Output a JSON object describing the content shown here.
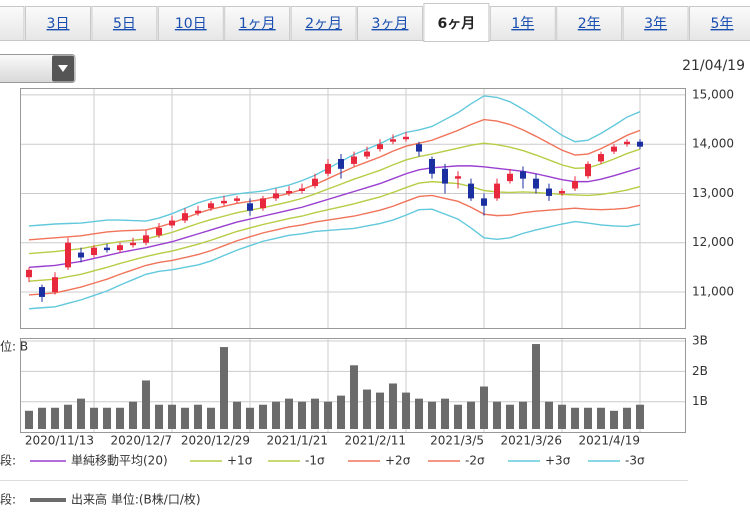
{
  "tabs": [
    "3日",
    "5日",
    "10日",
    "1ヶ月",
    "2ヶ月",
    "3ヶ月",
    "6ヶ月",
    "1年",
    "2年",
    "3年",
    "5年"
  ],
  "active_tab_index": 6,
  "date": "21/04/19",
  "chart_data": [
    {
      "type": "candlestick",
      "categories": [
        null,
        null,
        null,
        null,
        null,
        "2020/11/13",
        null,
        null,
        null,
        null,
        null,
        "2020/12/7",
        null,
        null,
        null,
        null,
        null,
        "2020/12/29",
        null,
        null,
        null,
        null,
        null,
        "2021/1/21",
        null,
        null,
        null,
        null,
        null,
        "2021/2/11",
        null,
        null,
        null,
        null,
        null,
        "2021/3/5",
        null,
        null,
        null,
        null,
        null,
        "2021/3/26",
        null,
        null,
        null,
        null,
        null,
        "2021/4/19"
      ],
      "open": [
        11300,
        11100,
        11000,
        11500,
        11800,
        11750,
        11900,
        11850,
        11950,
        12000,
        12150,
        12350,
        12450,
        12600,
        12700,
        12800,
        12850,
        12800,
        12700,
        12900,
        13000,
        13050,
        13150,
        13400,
        13700,
        13600,
        13750,
        13900,
        14050,
        14100,
        14000,
        13700,
        13500,
        13300,
        13200,
        12900,
        12900,
        13250,
        13450,
        13300,
        13100,
        13000,
        13100,
        13350,
        13650,
        13850,
        14000,
        14050
      ],
      "high": [
        11500,
        11150,
        11400,
        12100,
        11900,
        11950,
        11980,
        12000,
        12100,
        12250,
        12400,
        12550,
        12700,
        12750,
        12850,
        12950,
        12950,
        12900,
        12950,
        13100,
        13150,
        13200,
        13400,
        13700,
        13800,
        13850,
        13950,
        14100,
        14200,
        14250,
        14050,
        13750,
        13600,
        13450,
        13300,
        13000,
        13300,
        13500,
        13550,
        13400,
        13200,
        13100,
        13350,
        13650,
        13850,
        14000,
        14100,
        14100
      ],
      "low": [
        11200,
        10800,
        10950,
        11450,
        11600,
        11700,
        11800,
        11800,
        11900,
        11950,
        12100,
        12300,
        12400,
        12550,
        12650,
        12750,
        12800,
        12550,
        12650,
        12850,
        12950,
        13000,
        13100,
        13350,
        13300,
        13550,
        13700,
        13850,
        14000,
        14050,
        13750,
        13300,
        13000,
        13100,
        12850,
        12550,
        12850,
        13200,
        13100,
        13000,
        12850,
        12950,
        13050,
        13300,
        13600,
        13800,
        13950,
        13900
      ],
      "close": [
        11450,
        10900,
        11300,
        12000,
        11700,
        11900,
        11850,
        11950,
        12000,
        12150,
        12300,
        12450,
        12600,
        12650,
        12800,
        12850,
        12900,
        12650,
        12900,
        13000,
        13050,
        13100,
        13300,
        13600,
        13500,
        13750,
        13850,
        14000,
        14100,
        14150,
        13850,
        13400,
        13200,
        13350,
        12900,
        12750,
        13200,
        13400,
        13300,
        13100,
        12950,
        13050,
        13250,
        13600,
        13800,
        13950,
        14050,
        13950
      ],
      "up_color": "#e8283c",
      "down_color": "#1c2fa0",
      "ylim": [
        10330,
        15100
      ],
      "yticks": [
        {
          "value": 11000,
          "label": "11,000"
        },
        {
          "value": 12000,
          "label": "12,000"
        },
        {
          "value": 13000,
          "label": "13,000"
        },
        {
          "value": 14000,
          "label": "14,000"
        },
        {
          "value": 15000,
          "label": "15,000"
        }
      ],
      "grid": true,
      "legend_prefix": "段:",
      "series": [
        {
          "name": "単純移動平均(20)",
          "color": "#9a3fd0",
          "values": [
            11500,
            11520,
            11540,
            11580,
            11620,
            11680,
            11740,
            11800,
            11850,
            11900,
            11960,
            12020,
            12100,
            12180,
            12260,
            12340,
            12420,
            12480,
            12540,
            12600,
            12660,
            12720,
            12800,
            12880,
            12960,
            13040,
            13120,
            13200,
            13300,
            13400,
            13480,
            13520,
            13540,
            13560,
            13560,
            13540,
            13510,
            13480,
            13450,
            13400,
            13340,
            13280,
            13240,
            13240,
            13290,
            13360,
            13440,
            13520
          ]
        },
        {
          "name": "+1σ",
          "color": "#b8cc45",
          "values": [
            11780,
            11800,
            11820,
            11850,
            11880,
            11930,
            11980,
            12020,
            12050,
            12080,
            12140,
            12210,
            12300,
            12390,
            12470,
            12540,
            12610,
            12660,
            12710,
            12770,
            12830,
            12900,
            12990,
            13090,
            13190,
            13290,
            13380,
            13470,
            13580,
            13680,
            13750,
            13800,
            13860,
            13920,
            13980,
            14020,
            13990,
            13940,
            13870,
            13780,
            13680,
            13580,
            13510,
            13520,
            13600,
            13700,
            13810,
            13900
          ]
        },
        {
          "name": "-1σ",
          "color": "#b8cc45",
          "values": [
            11220,
            11240,
            11260,
            11310,
            11360,
            11430,
            11500,
            11580,
            11650,
            11720,
            11780,
            11830,
            11900,
            11970,
            12050,
            12140,
            12230,
            12300,
            12370,
            12430,
            12490,
            12540,
            12610,
            12670,
            12730,
            12790,
            12860,
            12930,
            13020,
            13120,
            13210,
            13240,
            13220,
            13200,
            13140,
            13060,
            13030,
            13020,
            13030,
            13020,
            13000,
            12980,
            12970,
            12960,
            12980,
            13020,
            13070,
            13140
          ]
        },
        {
          "name": "+2σ",
          "color": "#f0745a",
          "values": [
            12060,
            12080,
            12100,
            12120,
            12140,
            12180,
            12220,
            12240,
            12250,
            12260,
            12320,
            12400,
            12500,
            12600,
            12680,
            12740,
            12800,
            12840,
            12880,
            12940,
            13000,
            13080,
            13180,
            13300,
            13420,
            13540,
            13640,
            13740,
            13860,
            13960,
            14020,
            14080,
            14180,
            14280,
            14400,
            14500,
            14470,
            14400,
            14290,
            14160,
            14020,
            13880,
            13780,
            13800,
            13910,
            14040,
            14180,
            14280
          ]
        },
        {
          "name": "-2σ",
          "color": "#f0745a",
          "values": [
            10940,
            10960,
            10980,
            11040,
            11100,
            11180,
            11260,
            11360,
            11450,
            11540,
            11600,
            11640,
            11700,
            11760,
            11840,
            11940,
            12040,
            12120,
            12200,
            12260,
            12320,
            12360,
            12420,
            12460,
            12500,
            12540,
            12600,
            12660,
            12740,
            12840,
            12940,
            12960,
            12900,
            12840,
            12720,
            12580,
            12550,
            12560,
            12610,
            12640,
            12660,
            12680,
            12700,
            12680,
            12670,
            12680,
            12700,
            12760
          ]
        },
        {
          "name": "+3σ",
          "color": "#62c8dc",
          "values": [
            12340,
            12360,
            12380,
            12390,
            12400,
            12430,
            12460,
            12460,
            12450,
            12440,
            12500,
            12590,
            12700,
            12810,
            12890,
            12940,
            12990,
            13020,
            13050,
            13110,
            13170,
            13260,
            13370,
            13510,
            13650,
            13790,
            13900,
            14010,
            14140,
            14240,
            14290,
            14360,
            14500,
            14640,
            14820,
            14980,
            14950,
            14860,
            14710,
            14540,
            14360,
            14180,
            14050,
            14080,
            14220,
            14380,
            14550,
            14660
          ]
        },
        {
          "name": "-3σ",
          "color": "#62c8dc",
          "values": [
            10660,
            10680,
            10700,
            10770,
            10840,
            10930,
            11020,
            11140,
            11250,
            11360,
            11420,
            11450,
            11500,
            11550,
            11630,
            11740,
            11850,
            11940,
            12030,
            12090,
            12150,
            12180,
            12230,
            12250,
            12270,
            12290,
            12340,
            12390,
            12460,
            12560,
            12670,
            12680,
            12580,
            12480,
            12300,
            12100,
            12070,
            12100,
            12190,
            12260,
            12320,
            12380,
            12430,
            12400,
            12360,
            12340,
            12330,
            12380
          ]
        }
      ]
    },
    {
      "type": "bar",
      "unit_label": "位: B",
      "legend_prefix": "段:",
      "series": [
        {
          "name": "出来高 単位:(B株/口/枚)",
          "color": "#6b6b6b",
          "values": [
            0.7,
            0.8,
            0.8,
            0.9,
            1.1,
            0.8,
            0.8,
            0.8,
            1.0,
            1.7,
            0.9,
            0.9,
            0.8,
            0.9,
            0.8,
            2.8,
            1.0,
            0.8,
            0.9,
            1.0,
            1.1,
            1.0,
            1.1,
            1.0,
            1.2,
            2.2,
            1.4,
            1.3,
            1.6,
            1.3,
            1.1,
            1.0,
            1.1,
            0.9,
            1.0,
            1.5,
            1.0,
            0.9,
            1.0,
            2.9,
            1.0,
            0.9,
            0.8,
            0.8,
            0.8,
            0.7,
            0.8,
            0.9
          ]
        }
      ],
      "ylim": [
        0.1,
        3.0
      ],
      "yticks": [
        {
          "value": 1,
          "label": "1B"
        },
        {
          "value": 2,
          "label": "2B"
        },
        {
          "value": 3,
          "label": "3B"
        }
      ],
      "grid": true
    }
  ]
}
